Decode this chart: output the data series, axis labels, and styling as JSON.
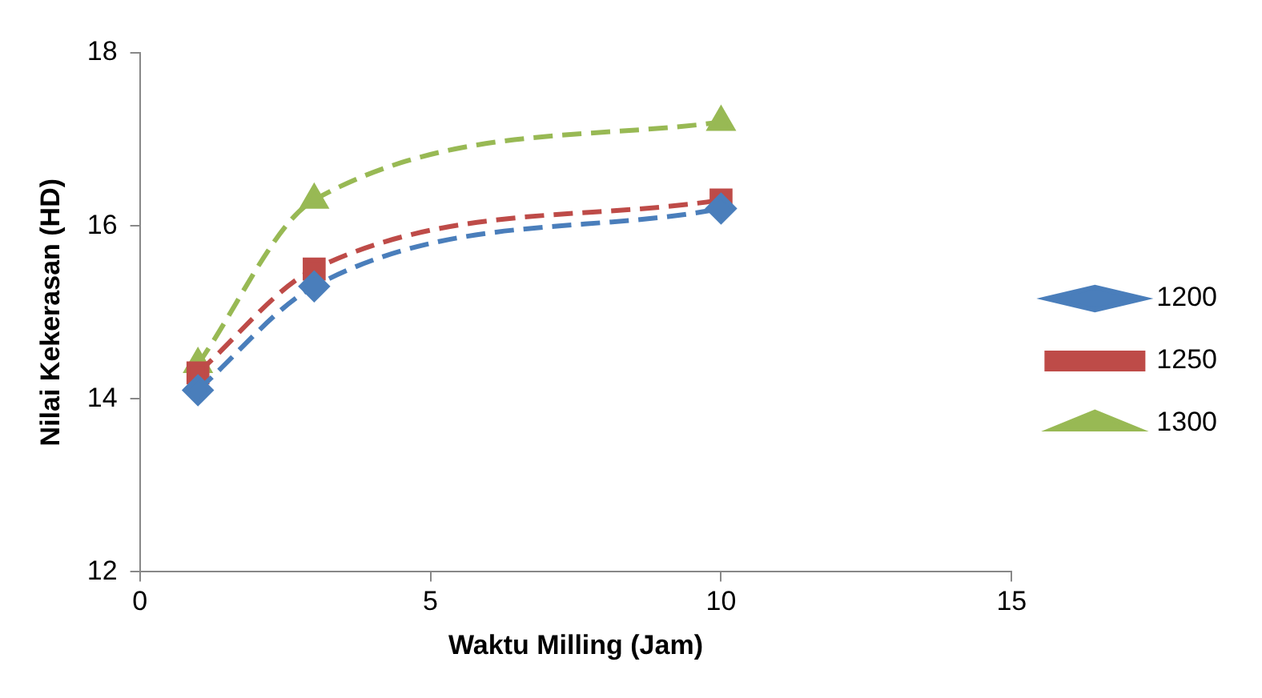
{
  "chart_data": {
    "type": "line",
    "xlabel": "Waktu Milling (Jam)",
    "ylabel": "Nilai Kekerasan (HD)",
    "x": [
      1,
      3,
      10
    ],
    "series": [
      {
        "name": "1200",
        "color": "#4a7ebb",
        "values": [
          14.1,
          15.3,
          16.2
        ],
        "marker": "diamond"
      },
      {
        "name": "1250",
        "color": "#be4b48",
        "values": [
          14.3,
          15.5,
          16.3
        ],
        "marker": "square"
      },
      {
        "name": "1300",
        "color": "#98b954",
        "values": [
          14.4,
          16.3,
          17.2
        ],
        "marker": "triangle"
      }
    ],
    "xlim": [
      0,
      15
    ],
    "xticks": [
      0,
      5,
      10,
      15
    ],
    "ylim": [
      12,
      18
    ],
    "yticks": [
      12,
      14,
      16,
      18
    ],
    "grid": false,
    "legend": "right",
    "line_style": "dashed"
  }
}
